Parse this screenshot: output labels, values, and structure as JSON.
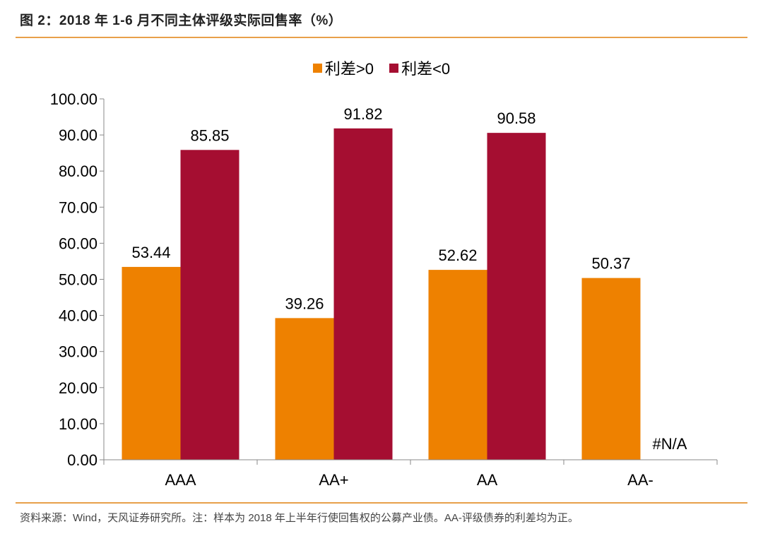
{
  "figure_title": "图 2：2018 年 1-6 月不同主体评级实际回售率（%）",
  "source_note": "资料来源：Wind，天风证券研究所。注：样本为 2018 年上半年行使回售权的公募产业债。AA-评级债券的利差均为正。",
  "colors": {
    "positive": "#EE8100",
    "negative": "#A50E31",
    "rule": "#E8A04A"
  },
  "chart_data": {
    "type": "bar",
    "title": "",
    "xlabel": "",
    "ylabel": "",
    "categories": [
      "AAA",
      "AA+",
      "AA",
      "AA-"
    ],
    "series": [
      {
        "name": "利差>0",
        "values": [
          53.44,
          39.26,
          52.62,
          50.37
        ],
        "labels": [
          "53.44",
          "39.26",
          "52.62",
          "50.37"
        ]
      },
      {
        "name": "利差<0",
        "values": [
          85.85,
          91.82,
          90.58,
          null
        ],
        "labels": [
          "85.85",
          "91.82",
          "90.58",
          "#N/A"
        ]
      }
    ],
    "ylim": [
      0,
      100
    ],
    "yticks": [
      "0.00",
      "10.00",
      "20.00",
      "30.00",
      "40.00",
      "50.00",
      "60.00",
      "70.00",
      "80.00",
      "90.00",
      "100.00"
    ],
    "legend": "top-center",
    "grid": false
  }
}
